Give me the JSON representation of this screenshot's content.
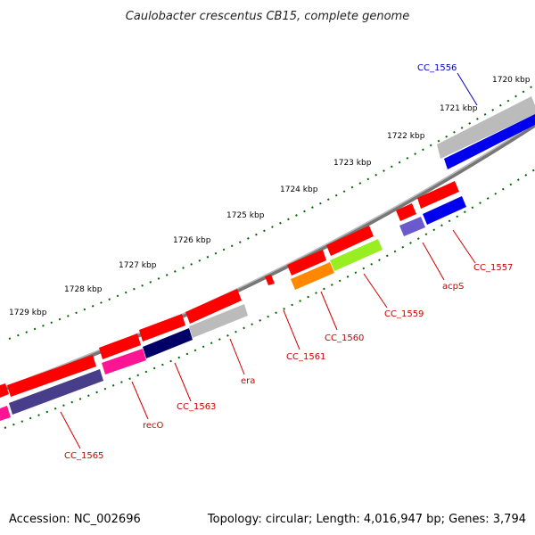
{
  "title": "Caulobacter crescentus CB15, complete genome",
  "footer": {
    "accession": "Accession: NC_002696",
    "summary": "Topology: circular; Length: 4,016,947 bp; Genes: 3,794"
  },
  "ticks": [
    "1720 kbp",
    "1721 kbp",
    "1722 kbp",
    "1723 kbp",
    "1724 kbp",
    "1725 kbp",
    "1726 kbp",
    "1727 kbp",
    "1728 kbp",
    "1729 kbp"
  ],
  "genes": [
    {
      "name": "CC_1556",
      "color": "#0000cc"
    },
    {
      "name": "CC_1557",
      "color": "#cc0000"
    },
    {
      "name": "acpS",
      "color": "#cc0000"
    },
    {
      "name": "CC_1559",
      "color": "#cc0000"
    },
    {
      "name": "CC_1560",
      "color": "#cc0000"
    },
    {
      "name": "CC_1561",
      "color": "#cc0000"
    },
    {
      "name": "era",
      "color": "#cc0000"
    },
    {
      "name": "CC_1563",
      "color": "#cc0000"
    },
    {
      "name": "recO",
      "color": "#cc0000"
    },
    {
      "name": "CC_1565",
      "color": "#cc0000"
    }
  ],
  "colors": {
    "backbone": "#888888",
    "tick": "#006600",
    "cds": "#ff0000",
    "gene_gray": "#bbbbbb",
    "gene_blue": "#0000ee",
    "gene_lightblue": "#6a5acd",
    "gene_green": "#99ee22",
    "gene_orange": "#ff8800",
    "gene_navy": "#000066",
    "gene_magenta": "#ff1493",
    "gene_darkslate": "#483d8b"
  }
}
